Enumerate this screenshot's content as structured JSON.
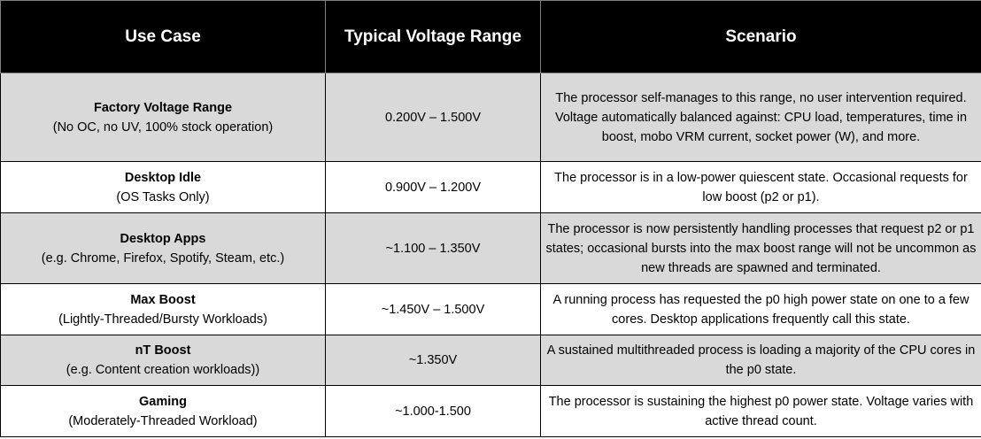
{
  "headers": {
    "use_case": "Use Case",
    "voltage": "Typical Voltage Range",
    "scenario": "Scenario"
  },
  "rows": [
    {
      "title": "Factory Voltage Range",
      "subtitle": "(No OC, no UV, 100% stock operation)",
      "voltage": "0.200V – 1.500V",
      "scenario": "The processor self-manages to this range, no user intervention required.  Voltage automatically balanced against: CPU load, temperatures, time in boost, mobo VRM current, socket power (W), and more."
    },
    {
      "title": "Desktop Idle",
      "subtitle": "(OS Tasks Only)",
      "voltage": "0.900V – 1.200V",
      "scenario": "The processor is in a low-power quiescent state. Occasional requests for low boost (p2 or p1)."
    },
    {
      "title": "Desktop Apps",
      "subtitle": "(e.g. Chrome, Firefox, Spotify, Steam, etc.)",
      "voltage": "~1.100 – 1.350V",
      "scenario": "The processor is now persistently handling processes that request p2 or p1 states; occasional bursts into the max boost range will not be uncommon as new threads are spawned and terminated."
    },
    {
      "title": "Max Boost",
      "subtitle": "(Lightly-Threaded/Bursty Workloads)",
      "voltage": "~1.450V – 1.500V",
      "scenario": "A running process has requested the p0 high power state on one to a few cores. Desktop applications frequently call this state."
    },
    {
      "title": "nT Boost",
      "subtitle": "(e.g. Content creation workloads))",
      "voltage": "~1.350V",
      "scenario": "A sustained multithreaded process is loading a majority of the CPU cores in the p0 state."
    },
    {
      "title": "Gaming",
      "subtitle": "(Moderately-Threaded Workload)",
      "voltage": "~1.000-1.500",
      "scenario": "The processor is sustaining the highest p0 power state. Voltage varies with active thread count."
    }
  ]
}
